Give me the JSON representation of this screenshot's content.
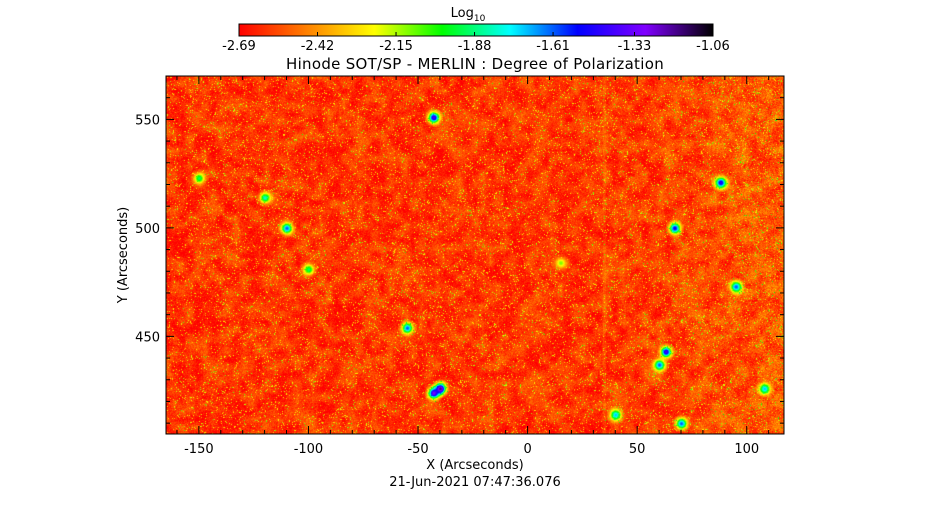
{
  "chart_data": {
    "type": "heatmap",
    "title": "Hinode SOT/SP - MERLIN : Degree of Polarization",
    "xlabel": "X (Arcseconds)",
    "ylabel": "Y (Arcseconds)",
    "date": "21-Jun-2021 07:47:36.076",
    "xlim": [
      -165,
      117
    ],
    "ylim": [
      405,
      570
    ],
    "x_ticks": [
      "-150",
      "-100",
      "-50",
      "0",
      "50",
      "100"
    ],
    "x_tick_values": [
      -150,
      -100,
      -50,
      0,
      50,
      100
    ],
    "y_ticks": [
      "450",
      "500",
      "550"
    ],
    "y_tick_values": [
      450,
      500,
      550
    ],
    "colorbar": {
      "label": "Log",
      "label_sub": "10",
      "range": [
        -2.69,
        -1.06
      ],
      "ticks": [
        "-2.69",
        "-2.42",
        "-2.15",
        "-1.88",
        "-1.61",
        "-1.33",
        "-1.06"
      ],
      "tick_values": [
        -2.69,
        -2.42,
        -2.15,
        -1.88,
        -1.61,
        -1.33,
        -1.06
      ],
      "colormap": [
        "#ff0000",
        "#ff8000",
        "#ffff00",
        "#00ff00",
        "#00ffff",
        "#0000ff",
        "#8000ff",
        "#000000"
      ]
    },
    "background_level": -2.6,
    "features": [
      {
        "x": -43,
        "y": 551,
        "level": -1.4
      },
      {
        "x": -40,
        "y": 426,
        "level": -1.15
      },
      {
        "x": -43,
        "y": 424,
        "level": -1.3
      },
      {
        "x": -55,
        "y": 454,
        "level": -1.6
      },
      {
        "x": -100,
        "y": 481,
        "level": -1.9
      },
      {
        "x": -110,
        "y": 500,
        "level": -1.6
      },
      {
        "x": -120,
        "y": 514,
        "level": -1.8
      },
      {
        "x": 15,
        "y": 484,
        "level": -2.1
      },
      {
        "x": 60,
        "y": 437,
        "level": -1.6
      },
      {
        "x": 67,
        "y": 500,
        "level": -1.5
      },
      {
        "x": 63,
        "y": 443,
        "level": -1.4
      },
      {
        "x": 88,
        "y": 521,
        "level": -1.45
      },
      {
        "x": 95,
        "y": 473,
        "level": -1.6
      },
      {
        "x": 108,
        "y": 426,
        "level": -1.7
      },
      {
        "x": -150,
        "y": 523,
        "level": -1.9
      },
      {
        "x": 40,
        "y": 414,
        "level": -1.7
      },
      {
        "x": 70,
        "y": 410,
        "level": -1.6
      }
    ]
  }
}
